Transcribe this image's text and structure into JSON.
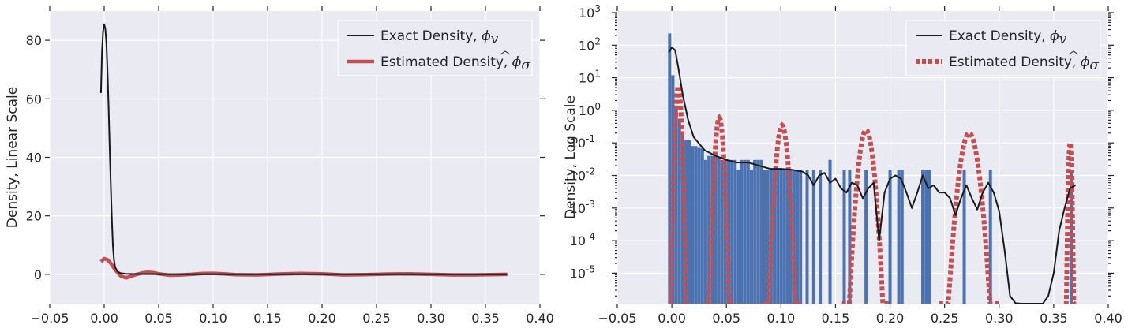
{
  "colors": {
    "background": "#EAEAF2",
    "exact": "#1a1a1a",
    "estimated": "#C44E52",
    "bars": "#4C72B0"
  },
  "chart_data": [
    {
      "type": "line",
      "xlim": [
        -0.05,
        0.4
      ],
      "ylim": [
        -10,
        90
      ],
      "xticks": [
        "−0.05",
        "0.00",
        "0.05",
        "0.10",
        "0.15",
        "0.20",
        "0.25",
        "0.30",
        "0.35",
        "0.40"
      ],
      "xtick_values": [
        -0.05,
        0.0,
        0.05,
        0.1,
        0.15,
        0.2,
        0.25,
        0.3,
        0.35,
        0.4
      ],
      "yticks": [
        "0",
        "20",
        "40",
        "60",
        "80"
      ],
      "ytick_values": [
        0,
        20,
        40,
        60,
        80
      ],
      "ylabel": "Density, Linear Scale",
      "grid": true,
      "legend": {
        "placement": "top-right",
        "entries": [
          {
            "text": "Exact Density, ",
            "math": "ϕ",
            "sub": "v",
            "style": "solid-thin"
          },
          {
            "text": "Estimated Density, ",
            "math": "ϕ",
            "sub": "σ",
            "hat": true,
            "style": "solid-thick"
          }
        ]
      },
      "series": [
        {
          "name": "Exact Density, ϕv",
          "x": [
            -0.003,
            -0.002,
            -0.001,
            0.0,
            0.001,
            0.002,
            0.003,
            0.004,
            0.005,
            0.006,
            0.007,
            0.008,
            0.009,
            0.01,
            0.012,
            0.015,
            0.02,
            0.03,
            0.05,
            0.08,
            0.1,
            0.15,
            0.2,
            0.25,
            0.3,
            0.37
          ],
          "y": [
            62,
            76,
            83,
            85.5,
            84,
            79,
            70,
            58,
            44,
            31,
            19,
            10,
            5,
            2.5,
            1,
            0.4,
            0.2,
            0.1,
            0.08,
            0.05,
            0.04,
            0.03,
            0.02,
            0.02,
            0.02,
            0.01
          ]
        },
        {
          "name": "Estimated Density, ϕσ",
          "x": [
            -0.003,
            0.0,
            0.003,
            0.006,
            0.01,
            0.015,
            0.02,
            0.025,
            0.03,
            0.035,
            0.04,
            0.045,
            0.05,
            0.06,
            0.07,
            0.08,
            0.09,
            0.1,
            0.11,
            0.12,
            0.14,
            0.16,
            0.18,
            0.2,
            0.22,
            0.24,
            0.26,
            0.28,
            0.3,
            0.32,
            0.34,
            0.37
          ],
          "y": [
            4.3,
            5.4,
            5.0,
            3.8,
            1.6,
            -0.5,
            -1.2,
            -0.6,
            0.0,
            0.5,
            0.7,
            0.6,
            0.2,
            -0.3,
            -0.2,
            0.0,
            0.3,
            0.35,
            0.2,
            -0.1,
            -0.2,
            0.1,
            0.3,
            0.2,
            -0.2,
            -0.1,
            0.1,
            0.2,
            0.0,
            -0.2,
            -0.2,
            0.0
          ]
        }
      ]
    },
    {
      "type": "line",
      "yscale": "log",
      "xlim": [
        -0.05,
        0.4
      ],
      "ylim_exponent": [
        -6,
        3
      ],
      "xticks": [
        "−0.05",
        "0.00",
        "0.05",
        "0.10",
        "0.15",
        "0.20",
        "0.25",
        "0.30",
        "0.35",
        "0.40"
      ],
      "xtick_values": [
        -0.05,
        0.0,
        0.05,
        0.1,
        0.15,
        0.2,
        0.25,
        0.3,
        0.35,
        0.4
      ],
      "yticks": [
        {
          "base": "10",
          "exp": "3",
          "value": 3
        },
        {
          "base": "10",
          "exp": "2",
          "value": 2
        },
        {
          "base": "10",
          "exp": "1",
          "value": 1
        },
        {
          "base": "10",
          "exp": "0",
          "value": 0
        },
        {
          "base": "10",
          "exp": "-1",
          "value": -1
        },
        {
          "base": "10",
          "exp": "-2",
          "value": -2
        },
        {
          "base": "10",
          "exp": "-3",
          "value": -3
        },
        {
          "base": "10",
          "exp": "-4",
          "value": -4
        },
        {
          "base": "10",
          "exp": "-5",
          "value": -5
        }
      ],
      "ylabel": "Density, Log Scale",
      "grid": true,
      "legend": {
        "placement": "top-right",
        "entries": [
          {
            "text": "Exact Density, ",
            "math": "ϕ",
            "sub": "v",
            "style": "solid-thin"
          },
          {
            "text": "Estimated Density, ",
            "math": "ϕ",
            "sub": "σ",
            "hat": true,
            "style": "dotted-thick"
          }
        ]
      },
      "histogram": {
        "x": [
          -0.002,
          0.001,
          0.004,
          0.007,
          0.01,
          0.013,
          0.016,
          0.019,
          0.022,
          0.025,
          0.028,
          0.031,
          0.034,
          0.037,
          0.04,
          0.043,
          0.046,
          0.049,
          0.052,
          0.055,
          0.058,
          0.061,
          0.064,
          0.067,
          0.07,
          0.073,
          0.076,
          0.079,
          0.082,
          0.085,
          0.088,
          0.091,
          0.094,
          0.097,
          0.1,
          0.103,
          0.106,
          0.109,
          0.112,
          0.115,
          0.118,
          0.124,
          0.13,
          0.136,
          0.145,
          0.158,
          0.163,
          0.178,
          0.2,
          0.208,
          0.211,
          0.23,
          0.233,
          0.236,
          0.268,
          0.292,
          0.366
        ],
        "values": [
          230,
          12,
          1.4,
          0.55,
          0.2,
          0.12,
          0.12,
          0.08,
          0.08,
          0.07,
          0.07,
          0.03,
          0.04,
          0.04,
          0.04,
          0.035,
          0.03,
          0.03,
          0.03,
          0.03,
          0.03,
          0.015,
          0.03,
          0.03,
          0.03,
          0.015,
          0.03,
          0.03,
          0.03,
          0.015,
          0.015,
          0.015,
          0.015,
          0.015,
          0.015,
          0.015,
          0.015,
          0.015,
          0.015,
          0.015,
          0.015,
          0.015,
          0.015,
          0.015,
          0.03,
          0.015,
          0.015,
          0.015,
          0.015,
          0.015,
          0.015,
          0.015,
          0.015,
          0.015,
          0.015,
          0.015,
          0.015
        ]
      },
      "series": [
        {
          "name": "Exact Density, ϕv",
          "x": [
            -0.003,
            0.0,
            0.003,
            0.006,
            0.01,
            0.015,
            0.02,
            0.03,
            0.04,
            0.05,
            0.06,
            0.07,
            0.08,
            0.09,
            0.1,
            0.11,
            0.12,
            0.125,
            0.13,
            0.135,
            0.14,
            0.145,
            0.15,
            0.155,
            0.16,
            0.165,
            0.17,
            0.175,
            0.18,
            0.185,
            0.19,
            0.195,
            0.2,
            0.205,
            0.21,
            0.215,
            0.22,
            0.225,
            0.23,
            0.235,
            0.24,
            0.245,
            0.25,
            0.255,
            0.26,
            0.265,
            0.27,
            0.275,
            0.28,
            0.285,
            0.29,
            0.295,
            0.3,
            0.305,
            0.31,
            0.315,
            0.32,
            0.33,
            0.34,
            0.345,
            0.35,
            0.355,
            0.36,
            0.365,
            0.37
          ],
          "y": [
            60,
            85,
            70,
            20,
            3.0,
            0.5,
            0.15,
            0.06,
            0.04,
            0.03,
            0.025,
            0.025,
            0.02,
            0.016,
            0.016,
            0.015,
            0.013,
            0.01,
            0.005,
            0.01,
            0.012,
            0.006,
            0.008,
            0.004,
            0.003,
            0.006,
            0.005,
            0.002,
            0.004,
            0.006,
            0.0001,
            0.003,
            0.008,
            0.01,
            0.008,
            0.003,
            0.001,
            0.003,
            0.01,
            0.004,
            0.005,
            0.003,
            0.003,
            0.002,
            0.0006,
            0.002,
            0.005,
            0.002,
            0.0009,
            0.003,
            0.006,
            0.003,
            0.0008,
            5e-05,
            2e-06,
            1.2e-06,
            1e-06,
            1e-06,
            1e-06,
            2e-06,
            1e-05,
            0.0002,
            0.001,
            0.004,
            0.005
          ]
        },
        {
          "name": "Estimated Density, ϕσ",
          "segments": [
            {
              "center": 0.0,
              "start": -0.003,
              "end": 0.015,
              "peak": 5.5
            },
            {
              "center": 0.043,
              "start": 0.031,
              "end": 0.056,
              "peak": 0.6
            },
            {
              "center": 0.1,
              "start": 0.084,
              "end": 0.118,
              "peak": 0.35
            },
            {
              "center": 0.177,
              "start": 0.156,
              "end": 0.2,
              "peak": 0.25
            },
            {
              "center": 0.272,
              "start": 0.245,
              "end": 0.3,
              "peak": 0.2
            },
            {
              "center": 0.38,
              "start": 0.36,
              "end": 0.37,
              "peak": 0.1
            }
          ]
        }
      ]
    }
  ]
}
